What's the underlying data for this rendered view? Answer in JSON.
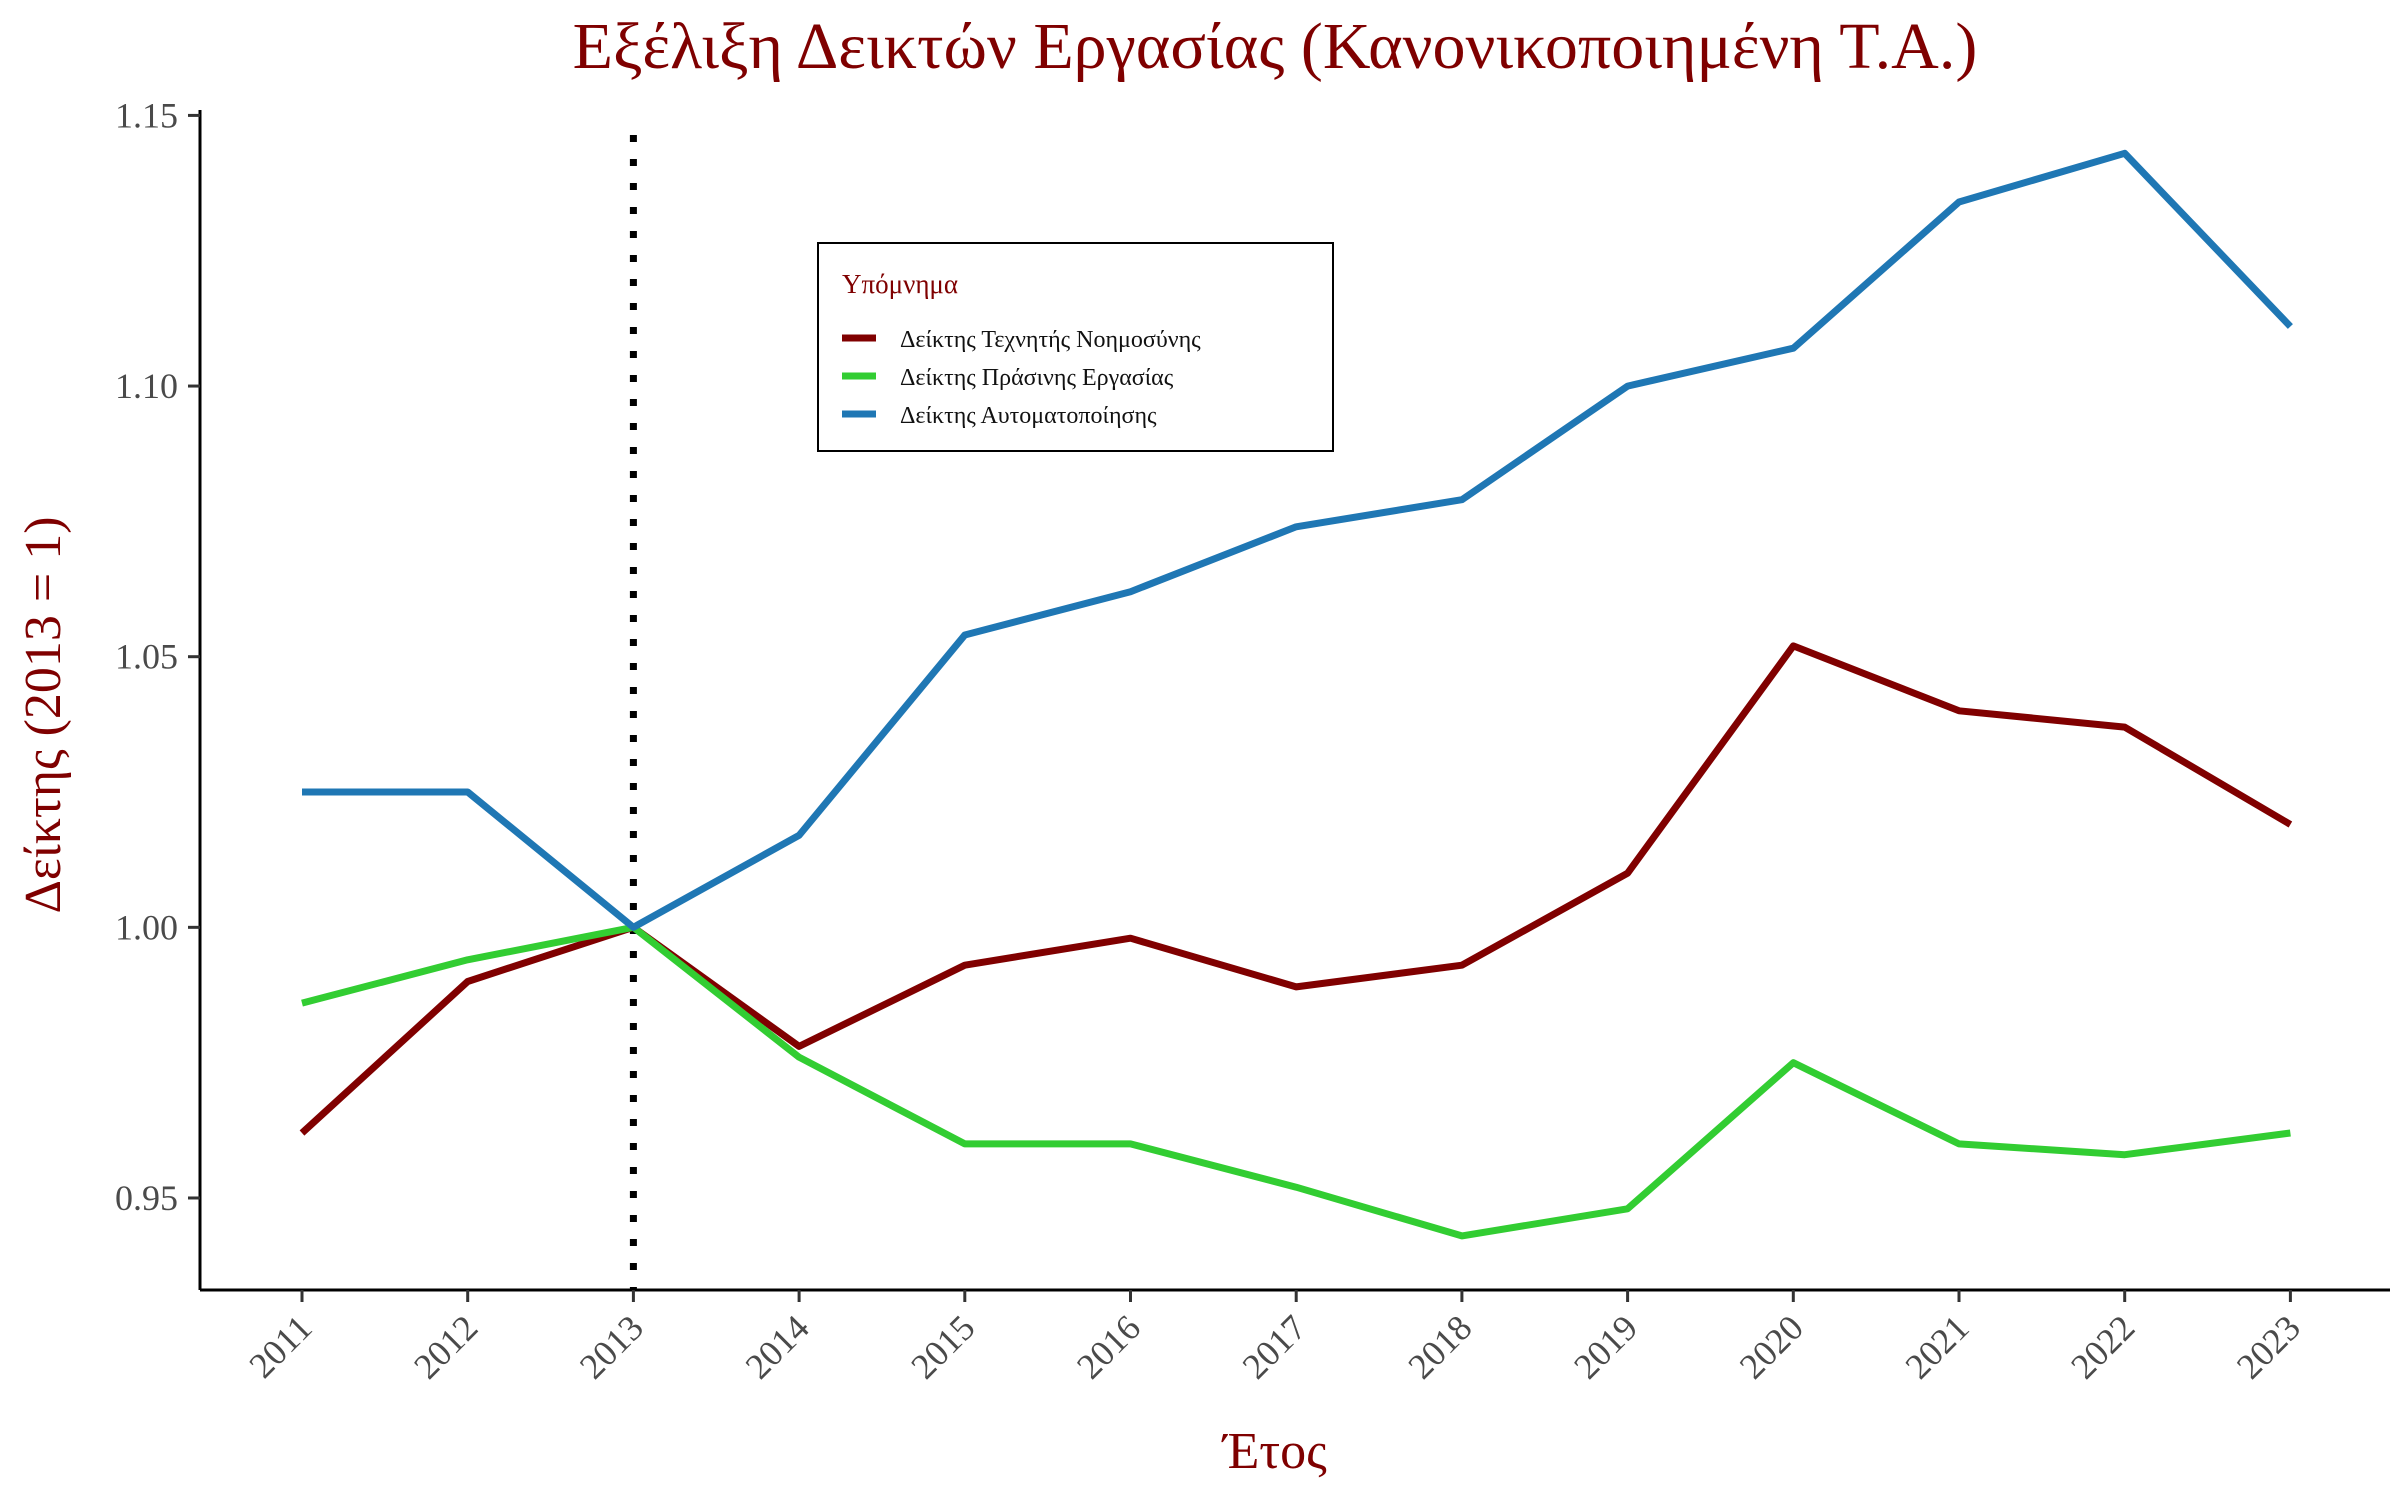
{
  "chart_data": {
    "type": "line",
    "title": "Εξέλιξη Δεικτών Εργασίας (Κανονικοποιημένη Τ.Α.)",
    "xlabel": "Έτος",
    "ylabel": "Δείκτης (2013 = 1)",
    "x": [
      2011,
      2012,
      2013,
      2014,
      2015,
      2016,
      2017,
      2018,
      2019,
      2020,
      2021,
      2022,
      2023
    ],
    "ylim": [
      0.933,
      1.151
    ],
    "yticks": [
      0.95,
      1.0,
      1.05,
      1.1,
      1.15
    ],
    "ytick_labels": [
      "0.95",
      "1.00",
      "1.05",
      "1.10",
      "1.15"
    ],
    "xtick_labels": [
      "2011",
      "2012",
      "2013",
      "2014",
      "2015",
      "2016",
      "2017",
      "2018",
      "2019",
      "2020",
      "2021",
      "2022",
      "2023"
    ],
    "reference_line": {
      "x": 2013,
      "style": "dotted"
    },
    "legend": {
      "title": "Υπόμνημα",
      "placement": "top-center"
    },
    "grid": false,
    "series": [
      {
        "name": "Δείκτης Τεχνητής Νοημοσύνης",
        "color": "#800000",
        "values": [
          0.962,
          0.99,
          1.0,
          0.978,
          0.993,
          0.998,
          0.989,
          0.993,
          1.01,
          1.052,
          1.04,
          1.037,
          1.019
        ]
      },
      {
        "name": "Δείκτης Πράσινης Εργασίας",
        "color": "#32cd32",
        "values": [
          0.986,
          0.994,
          1.0,
          0.976,
          0.96,
          0.96,
          0.952,
          0.943,
          0.948,
          0.975,
          0.96,
          0.958,
          0.962
        ]
      },
      {
        "name": "Δείκτης Αυτοματοποίησης",
        "color": "#1f77b4",
        "values": [
          1.025,
          1.025,
          1.0,
          1.017,
          1.054,
          1.062,
          1.074,
          1.079,
          1.1,
          1.107,
          1.134,
          1.143,
          1.111
        ]
      }
    ]
  }
}
